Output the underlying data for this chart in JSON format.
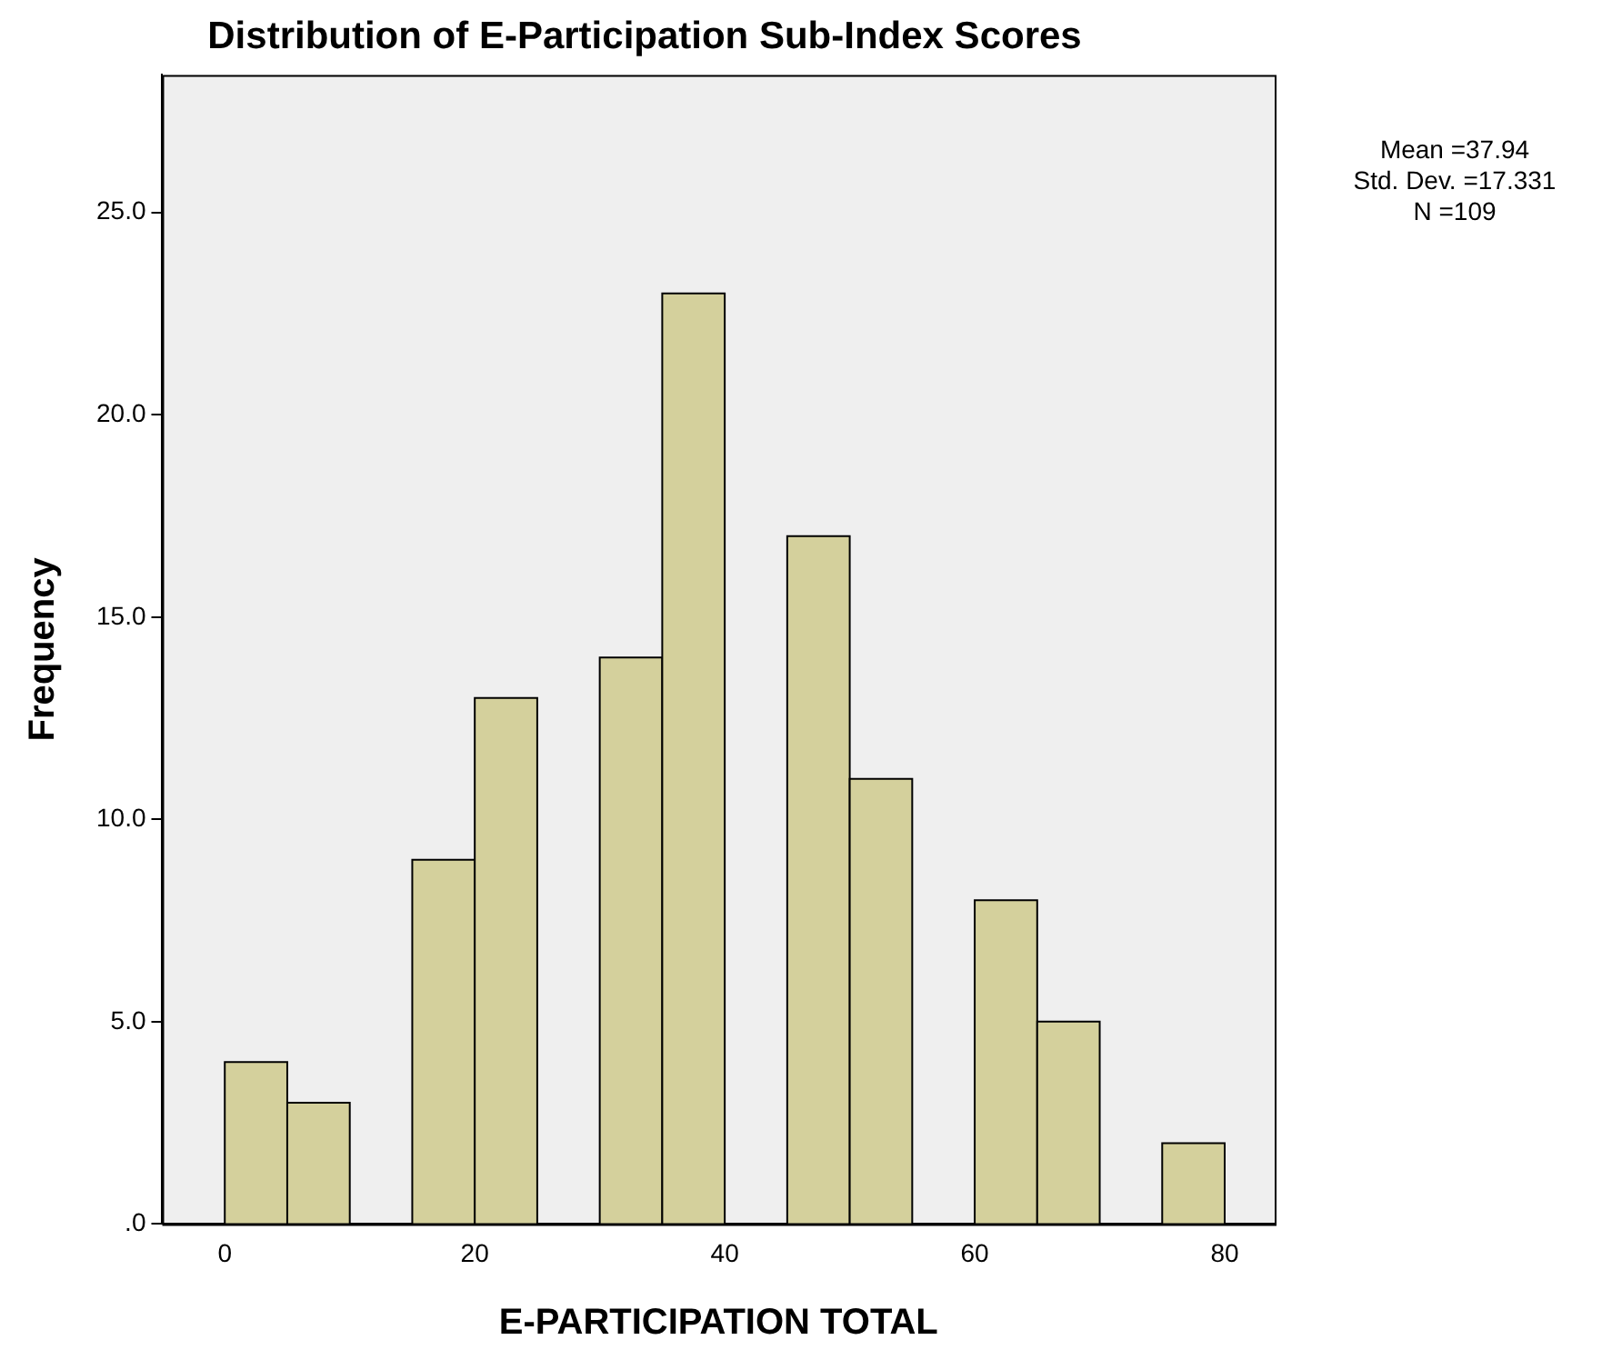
{
  "chart_data": {
    "type": "histogram",
    "title": "Distribution of E-Participation Sub-Index Scores",
    "xlabel": "E-PARTICIPATION TOTAL",
    "ylabel": "Frequency",
    "bins": [
      0,
      5,
      10,
      15,
      20,
      25,
      30,
      35,
      40,
      45,
      50,
      55,
      60,
      65,
      70,
      75,
      80
    ],
    "values": [
      4,
      3,
      0,
      9,
      13,
      0,
      14,
      23,
      0,
      17,
      11,
      0,
      8,
      5,
      0,
      2
    ],
    "color": "#d4d09c",
    "xlim": [
      -5,
      84
    ],
    "xticks": [
      0,
      20,
      40,
      60,
      80
    ],
    "ylim": [
      0,
      28.4
    ],
    "yticks": [
      {
        "value": 0,
        "label": ".0"
      },
      {
        "value": 5,
        "label": "5.0"
      },
      {
        "value": 10,
        "label": "10.0"
      },
      {
        "value": 15,
        "label": "15.0"
      },
      {
        "value": 20,
        "label": "20.0"
      },
      {
        "value": 25,
        "label": "25.0"
      }
    ],
    "grid": false,
    "legend": false,
    "annotations": [
      "Mean =37.94",
      "Std. Dev. =17.331",
      "N =109"
    ]
  }
}
